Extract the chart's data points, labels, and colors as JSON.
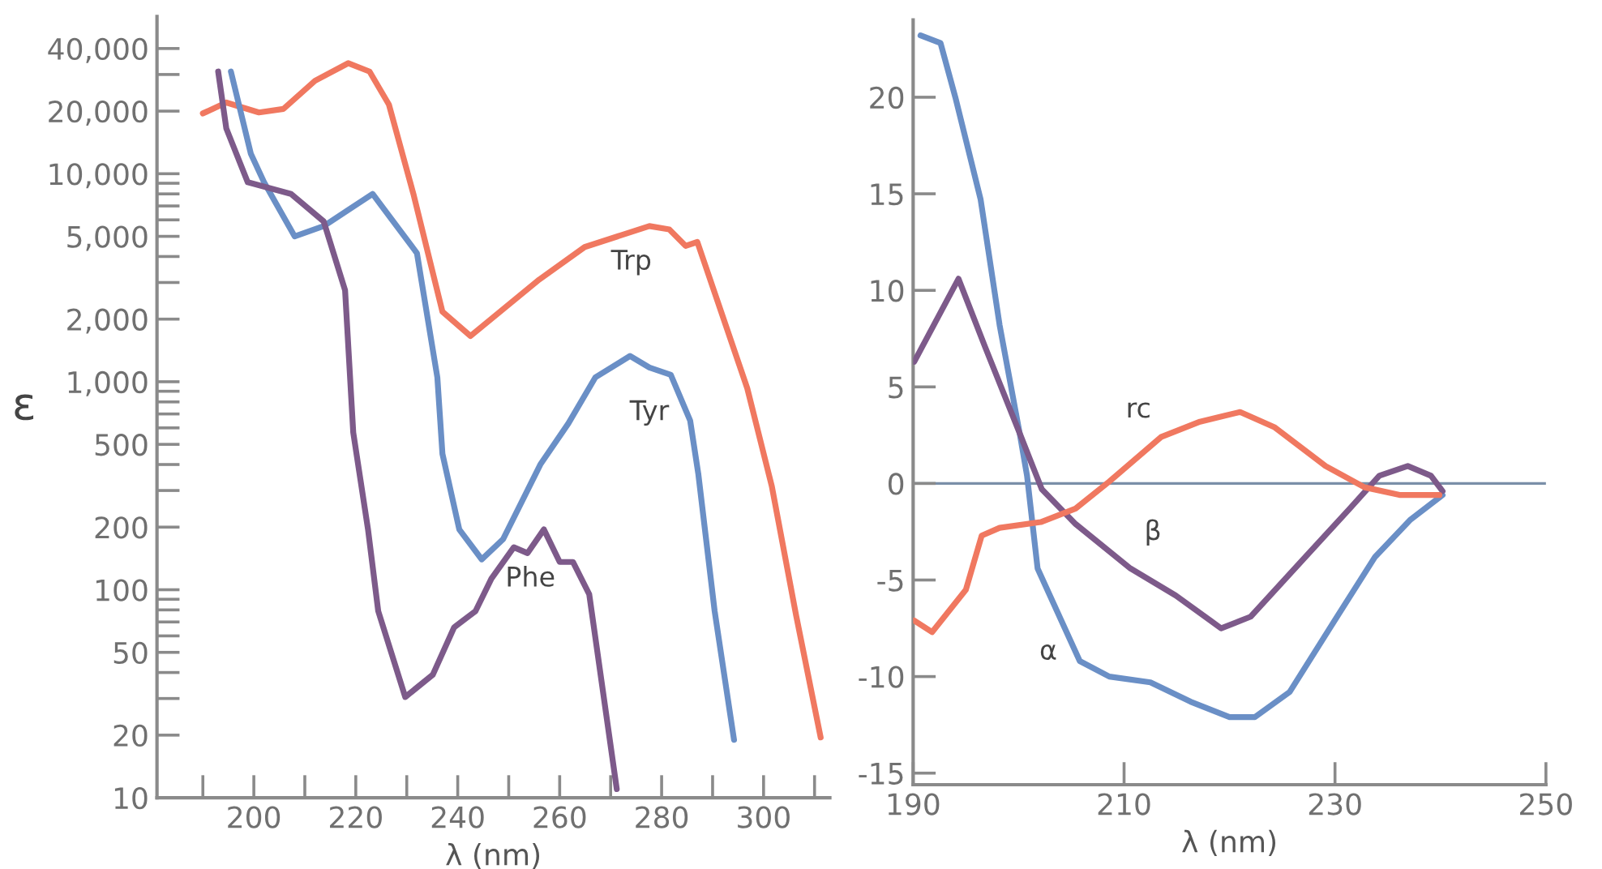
{
  "chart_data": [
    {
      "type": "line",
      "xlabel": "λ (nm)",
      "ylabel": "ε",
      "log": "y",
      "grid": false,
      "marker": "none",
      "line_style": "solid",
      "xlim": [
        181,
        313
      ],
      "ylim": [
        10,
        57000
      ],
      "xticks": [
        {
          "value": 190,
          "label": null
        },
        200,
        {
          "value": 210,
          "label": null
        },
        220,
        {
          "value": 230,
          "label": null
        },
        240,
        {
          "value": 250,
          "label": null
        },
        260,
        {
          "value": 270,
          "label": null
        },
        280,
        {
          "value": 290,
          "label": null
        },
        300,
        {
          "value": 310,
          "label": null
        }
      ],
      "yticks": [
        10,
        20,
        {
          "value": 30,
          "label": null
        },
        {
          "value": 40,
          "label": null
        },
        50,
        {
          "value": 60,
          "label": null
        },
        {
          "value": 70,
          "label": null
        },
        {
          "value": 80,
          "label": null
        },
        {
          "value": 90,
          "label": null
        },
        100,
        200,
        {
          "value": 300,
          "label": null
        },
        {
          "value": 400,
          "label": null
        },
        500,
        {
          "value": 600,
          "label": null
        },
        {
          "value": 700,
          "label": null
        },
        {
          "value": 800,
          "label": null
        },
        {
          "value": 900,
          "label": null
        },
        {
          "value": 1000,
          "label": "1,000"
        },
        {
          "value": 2000,
          "label": "2,000"
        },
        {
          "value": 3000,
          "label": null
        },
        {
          "value": 4000,
          "label": null
        },
        {
          "value": 5000,
          "label": "5,000"
        },
        {
          "value": 6000,
          "label": null
        },
        {
          "value": 7000,
          "label": null
        },
        {
          "value": 8000,
          "label": null
        },
        {
          "value": 9000,
          "label": null
        },
        {
          "value": 10000,
          "label": "10,000"
        },
        {
          "value": 20000,
          "label": "20,000"
        },
        {
          "value": 30000,
          "label": null
        },
        {
          "value": 40000,
          "label": "40,000"
        }
      ],
      "series": [
        {
          "color": "#f07860",
          "x": [
            190,
            194.6,
            201,
            205.8,
            212,
            218.5,
            222.7,
            226.5,
            231.3,
            237,
            242.5,
            256,
            264.9,
            277.6,
            281.5,
            284.7,
            287,
            296.8,
            301.6,
            306.4,
            311.2
          ],
          "values": [
            19500,
            22000,
            19700,
            20500,
            28000,
            34000,
            31000,
            21500,
            8000,
            2170,
            1660,
            3100,
            4440,
            5600,
            5400,
            4500,
            4700,
            930,
            316,
            75,
            19.5
          ]
        },
        {
          "color": "#6a8fc6",
          "x": [
            195.5,
            199.4,
            202,
            208,
            213.7,
            223.3,
            232,
            236,
            237,
            240.3,
            244.7,
            248.9,
            256.2,
            261.7,
            267,
            273.8,
            277.6,
            281.8,
            285.6,
            287.2,
            290.4,
            294.2
          ],
          "values": [
            31000,
            12500,
            9100,
            5000,
            5600,
            8000,
            4150,
            1050,
            450,
            195,
            140,
            175,
            400,
            630,
            1050,
            1330,
            1170,
            1080,
            650,
            360,
            79,
            19
          ]
        },
        {
          "color": "#7d5a8a",
          "x": [
            193,
            194.6,
            198.8,
            207.3,
            213.7,
            217.9,
            219.5,
            222.4,
            224.4,
            229.7,
            235.1,
            239.3,
            243.5,
            246.6,
            251,
            253.7,
            256.9,
            260,
            262.6,
            265.8,
            271.2
          ],
          "values": [
            31000,
            16500,
            9100,
            8000,
            5900,
            2750,
            570,
            195,
            79,
            30.5,
            39,
            66,
            79,
            113,
            160,
            150,
            195,
            136,
            136,
            95,
            11
          ]
        }
      ],
      "annotations": [
        {
          "text": "Trp",
          "x": 277.6,
          "y": 5600
        },
        {
          "text": "Tyr",
          "x": 277.6,
          "y": 1170
        },
        {
          "text": "Phe",
          "x": 256.9,
          "y": 195
        }
      ]
    },
    {
      "type": "line",
      "xlabel": "λ (nm)",
      "grid": false,
      "marker": "none",
      "line_style": "solid",
      "xlim": [
        190,
        250
      ],
      "ylim": [
        -15.6,
        24
      ],
      "xticks": [
        190,
        210,
        230,
        250
      ],
      "yticks": [
        -15,
        -10,
        -5,
        0,
        5,
        10,
        15,
        20
      ],
      "ref_lines": [
        {
          "axis": "y",
          "value": 0,
          "color": "#7a8fa8"
        }
      ],
      "series": [
        {
          "color": "#6a8fc6",
          "x": [
            190.7,
            192.6,
            194,
            196.4,
            198.2,
            200.1,
            200.8,
            201.8,
            205.8,
            208.6,
            212.5,
            216.3,
            220,
            222.4,
            225.7,
            229.5,
            233.8,
            237.1,
            240.2
          ],
          "values": [
            23.2,
            22.8,
            20,
            14.7,
            8.2,
            2.6,
            0.4,
            -4.4,
            -9.2,
            -10,
            -10.3,
            -11.3,
            -12.1,
            -12.1,
            -10.8,
            -7.5,
            -3.8,
            -1.9,
            -0.6
          ]
        },
        {
          "color": "#7d5a8a",
          "x": [
            190.1,
            194.3,
            196.8,
            200.1,
            202.2,
            205.4,
            210.6,
            214.9,
            219.2,
            222,
            226.7,
            231.4,
            234.2,
            236.9,
            239.1,
            240.2
          ],
          "values": [
            6.3,
            10.6,
            7.1,
            2.6,
            -0.3,
            -2.1,
            -4.4,
            -5.8,
            -7.5,
            -6.9,
            -4.1,
            -1.3,
            0.4,
            0.9,
            0.4,
            -0.4
          ]
        },
        {
          "color": "#f07860",
          "x": [
            190.1,
            191.8,
            195,
            196.5,
            198.2,
            202.1,
            205.4,
            208.6,
            213.5,
            217.2,
            221,
            224.3,
            229.1,
            232.8,
            236.2,
            239.9
          ],
          "values": [
            -7.1,
            -7.7,
            -5.5,
            -2.7,
            -2.3,
            -2.0,
            -1.3,
            0.1,
            2.4,
            3.2,
            3.7,
            2.9,
            0.9,
            -0.2,
            -0.6,
            -0.6
          ]
        }
      ],
      "annotations": [
        {
          "text": "rc",
          "x": 213.5,
          "y": 2.4
        },
        {
          "text": "β",
          "x": 210.6,
          "y": -4.4
        },
        {
          "text": "α",
          "x": 205.8,
          "y": -9.2
        }
      ]
    }
  ]
}
